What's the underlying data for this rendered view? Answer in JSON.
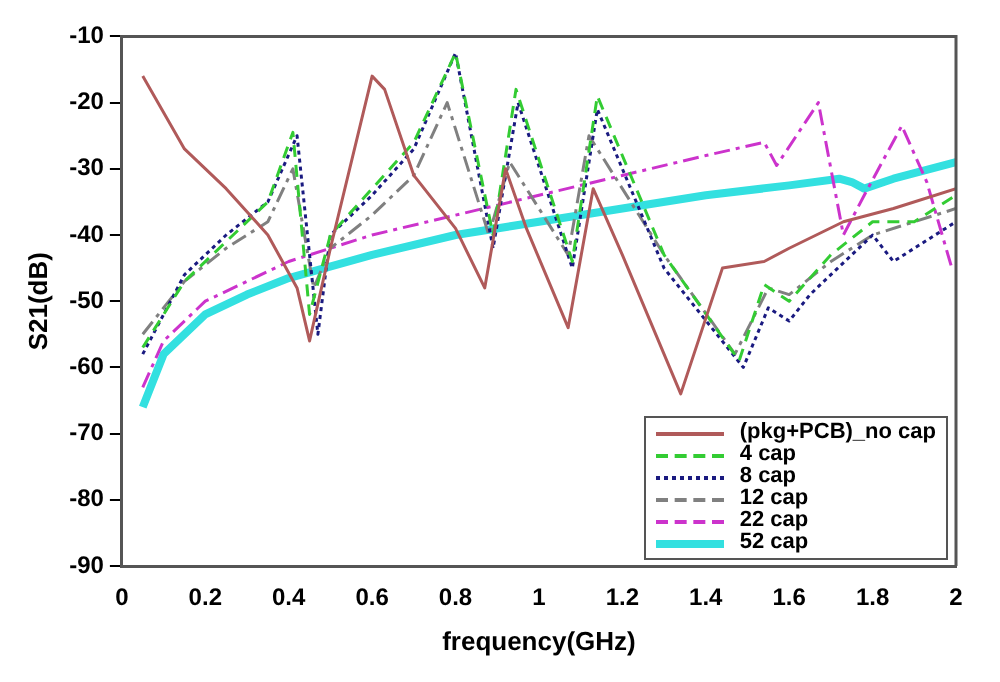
{
  "chart_data": {
    "type": "line",
    "xlabel": "frequency(GHz)",
    "ylabel": "S21(dB)",
    "xlim": [
      0,
      2
    ],
    "ylim": [
      -90,
      -10
    ],
    "xticks": [
      0,
      0.2,
      0.4,
      0.6,
      0.8,
      1,
      1.2,
      1.4,
      1.6,
      1.8,
      2
    ],
    "yticks": [
      -90,
      -80,
      -70,
      -60,
      -50,
      -40,
      -30,
      -20,
      -10
    ],
    "grid": false,
    "legend": "bottom right",
    "marker": "none",
    "series": [
      {
        "name": "(pkg+PCB)_no cap",
        "color": "#b05a5a",
        "line_style": "solid",
        "x": [
          0.05,
          0.15,
          0.25,
          0.35,
          0.42,
          0.45,
          0.5,
          0.6,
          0.63,
          0.7,
          0.8,
          0.87,
          0.92,
          0.97,
          1.07,
          1.13,
          1.2,
          1.34,
          1.44,
          1.54,
          1.6,
          1.73,
          1.85,
          2
        ],
        "values": [
          -16,
          -27,
          -33,
          -40,
          -48,
          -56,
          -42,
          -16,
          -18,
          -31,
          -39,
          -48,
          -30,
          -39,
          -54,
          -33,
          -43,
          -64,
          -45,
          -44,
          -42,
          -38,
          -36,
          -33
        ]
      },
      {
        "name": "4 cap",
        "color": "#33cc33",
        "line_style": "dashed",
        "x": [
          0.05,
          0.15,
          0.25,
          0.35,
          0.41,
          0.45,
          0.5,
          0.6,
          0.7,
          0.8,
          0.89,
          0.945,
          1.08,
          1.14,
          1.3,
          1.48,
          1.54,
          1.6,
          1.7,
          1.8,
          1.9,
          2
        ],
        "values": [
          -57,
          -47,
          -41,
          -35,
          -24.5,
          -52,
          -40,
          -33,
          -26,
          -12.5,
          -40,
          -18,
          -44,
          -19,
          -43,
          -59,
          -47.5,
          -50,
          -43,
          -38,
          -38,
          -34
        ]
      },
      {
        "name": "8 cap",
        "color": "#1a1a80",
        "line_style": "dotted",
        "x": [
          0.05,
          0.15,
          0.25,
          0.35,
          0.42,
          0.47,
          0.5,
          0.6,
          0.7,
          0.8,
          0.89,
          0.95,
          1.08,
          1.14,
          1.3,
          1.49,
          1.55,
          1.6,
          1.65,
          1.75,
          1.8,
          1.85,
          2
        ],
        "values": [
          -58,
          -46,
          -40,
          -35,
          -25,
          -55,
          -40,
          -34,
          -27,
          -12.5,
          -42,
          -20,
          -45,
          -21,
          -45,
          -60,
          -51,
          -53,
          -49,
          -43,
          -40,
          -44,
          -38
        ]
      },
      {
        "name": "12 cap",
        "color": "#808080",
        "line_style": "dashdot",
        "x": [
          0.05,
          0.15,
          0.25,
          0.35,
          0.41,
          0.46,
          0.5,
          0.6,
          0.7,
          0.78,
          0.88,
          0.93,
          1.07,
          1.12,
          1.3,
          1.47,
          1.55,
          1.6,
          1.7,
          1.8,
          1.9,
          2
        ],
        "values": [
          -55,
          -47,
          -42,
          -38,
          -30,
          -48,
          -42,
          -37,
          -31,
          -20,
          -40,
          -29,
          -43,
          -25,
          -43,
          -58,
          -48,
          -49,
          -44,
          -40,
          -38,
          -36
        ]
      },
      {
        "name": "22 cap",
        "color": "#cc33cc",
        "line_style": "dashdot",
        "x": [
          0.05,
          0.1,
          0.2,
          0.3,
          0.4,
          0.6,
          0.8,
          1,
          1.2,
          1.4,
          1.54,
          1.57,
          1.67,
          1.73,
          1.78,
          1.87,
          1.93,
          1.99
        ],
        "values": [
          -63,
          -56,
          -50,
          -47,
          -44,
          -40,
          -37,
          -34,
          -31,
          -28,
          -26,
          -29.5,
          -20,
          -40,
          -34,
          -23.5,
          -32,
          -45
        ]
      },
      {
        "name": "52 cap",
        "color": "#33e0e0",
        "line_style": "solid",
        "x": [
          0.05,
          0.1,
          0.2,
          0.3,
          0.4,
          0.6,
          0.8,
          1,
          1.2,
          1.4,
          1.6,
          1.72,
          1.75,
          1.78,
          1.85,
          2
        ],
        "values": [
          -66,
          -58,
          -52,
          -49,
          -46.5,
          -43,
          -40,
          -38,
          -36,
          -34,
          -32.5,
          -31.5,
          -32,
          -33,
          -31.5,
          -29
        ]
      }
    ]
  }
}
